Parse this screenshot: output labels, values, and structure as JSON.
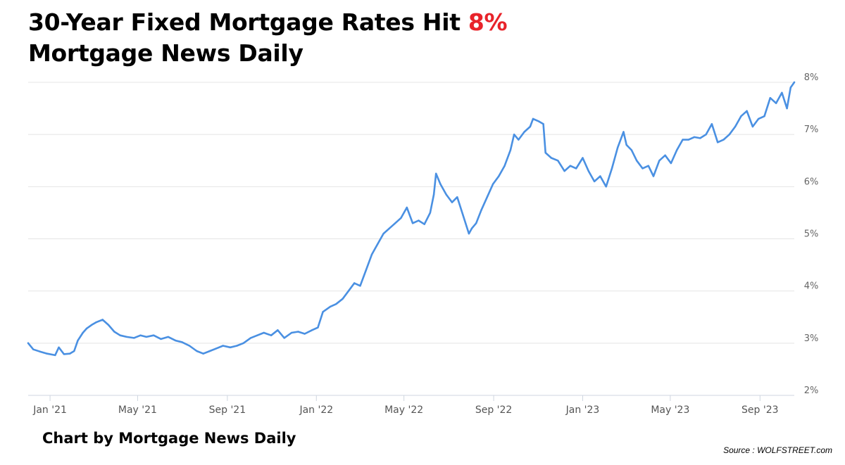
{
  "title": {
    "line1_text": "30-Year Fixed Mortgage Rates Hit ",
    "line1_accent": "8%",
    "line2": "Mortgage News Daily",
    "accent_color": "#e8232a"
  },
  "footer": {
    "credit": "Chart by Mortgage News Daily",
    "source": "Source : WOLFSTREET.com"
  },
  "chart_data": {
    "type": "line",
    "title": "",
    "xlabel": "",
    "ylabel": "",
    "x_start": "2020-12-02",
    "x_end": "2023-10-18",
    "ylim": [
      2,
      8
    ],
    "y_ticks": [
      2,
      3,
      4,
      5,
      6,
      7,
      8
    ],
    "y_tick_labels": [
      "2%",
      "3%",
      "4%",
      "5%",
      "6%",
      "7%",
      "8%"
    ],
    "x_ticks": [
      "2021-01-01",
      "2021-05-01",
      "2021-09-01",
      "2022-01-01",
      "2022-05-01",
      "2022-09-01",
      "2023-01-01",
      "2023-05-01",
      "2023-09-01"
    ],
    "x_tick_labels": [
      "Jan '21",
      "May '21",
      "Sep '21",
      "Jan '22",
      "May '22",
      "Sep '22",
      "Jan '23",
      "May '23",
      "Sep '23"
    ],
    "grid": true,
    "legend": "none",
    "line_color": "#4a90e2",
    "series": [
      {
        "x": [
          "2020-12-02",
          "2020-12-09",
          "2020-12-18",
          "2020-12-28",
          "2021-01-08",
          "2021-01-13",
          "2021-01-20",
          "2021-01-28",
          "2021-02-03",
          "2021-02-08",
          "2021-02-15",
          "2021-02-20",
          "2021-02-27",
          "2021-03-05",
          "2021-03-14",
          "2021-03-22",
          "2021-03-30",
          "2021-04-07",
          "2021-04-16",
          "2021-04-26",
          "2021-05-05",
          "2021-05-13",
          "2021-05-23",
          "2021-06-02",
          "2021-06-12",
          "2021-06-22",
          "2021-07-01",
          "2021-07-11",
          "2021-07-21",
          "2021-07-30",
          "2021-08-08",
          "2021-08-17",
          "2021-08-26",
          "2021-09-05",
          "2021-09-14",
          "2021-09-23",
          "2021-10-03",
          "2021-10-12",
          "2021-10-21",
          "2021-10-31",
          "2021-11-09",
          "2021-11-18",
          "2021-11-28",
          "2021-12-07",
          "2021-12-16",
          "2021-12-26",
          "2022-01-03",
          "2022-01-10",
          "2022-01-20",
          "2022-01-28",
          "2022-02-06",
          "2022-02-14",
          "2022-02-22",
          "2022-03-02",
          "2022-03-10",
          "2022-03-18",
          "2022-03-26",
          "2022-04-03",
          "2022-04-11",
          "2022-04-19",
          "2022-04-27",
          "2022-05-05",
          "2022-05-13",
          "2022-05-21",
          "2022-05-29",
          "2022-06-06",
          "2022-06-11",
          "2022-06-14",
          "2022-06-20",
          "2022-06-28",
          "2022-07-06",
          "2022-07-13",
          "2022-07-21",
          "2022-07-29",
          "2022-08-02",
          "2022-08-08",
          "2022-08-15",
          "2022-08-23",
          "2022-08-31",
          "2022-09-08",
          "2022-09-16",
          "2022-09-24",
          "2022-09-29",
          "2022-10-05",
          "2022-10-13",
          "2022-10-21",
          "2022-10-25",
          "2022-11-02",
          "2022-11-08",
          "2022-11-11",
          "2022-11-19",
          "2022-11-28",
          "2022-12-07",
          "2022-12-15",
          "2022-12-23",
          "2023-01-01",
          "2023-01-09",
          "2023-01-17",
          "2023-01-25",
          "2023-02-02",
          "2023-02-10",
          "2023-02-18",
          "2023-02-26",
          "2023-03-02",
          "2023-03-09",
          "2023-03-16",
          "2023-03-24",
          "2023-04-01",
          "2023-04-08",
          "2023-04-16",
          "2023-04-24",
          "2023-05-02",
          "2023-05-10",
          "2023-05-18",
          "2023-05-26",
          "2023-06-03",
          "2023-06-11",
          "2023-06-19",
          "2023-06-27",
          "2023-07-05",
          "2023-07-13",
          "2023-07-21",
          "2023-07-29",
          "2023-08-06",
          "2023-08-14",
          "2023-08-22",
          "2023-08-30",
          "2023-09-07",
          "2023-09-15",
          "2023-09-23",
          "2023-10-01",
          "2023-10-08",
          "2023-10-13",
          "2023-10-18"
        ],
        "y": [
          3.0,
          2.88,
          2.84,
          2.8,
          2.77,
          2.92,
          2.79,
          2.8,
          2.85,
          3.05,
          3.2,
          3.28,
          3.35,
          3.4,
          3.45,
          3.35,
          3.22,
          3.15,
          3.12,
          3.1,
          3.15,
          3.12,
          3.15,
          3.08,
          3.12,
          3.05,
          3.02,
          2.95,
          2.85,
          2.8,
          2.85,
          2.9,
          2.95,
          2.92,
          2.95,
          3.0,
          3.1,
          3.15,
          3.2,
          3.15,
          3.25,
          3.1,
          3.2,
          3.22,
          3.18,
          3.25,
          3.3,
          3.6,
          3.7,
          3.75,
          3.85,
          4.0,
          4.15,
          4.1,
          4.4,
          4.7,
          4.9,
          5.1,
          5.2,
          5.3,
          5.4,
          5.6,
          5.3,
          5.35,
          5.28,
          5.5,
          5.85,
          6.25,
          6.05,
          5.85,
          5.7,
          5.8,
          5.45,
          5.1,
          5.2,
          5.3,
          5.55,
          5.8,
          6.05,
          6.2,
          6.4,
          6.7,
          7.0,
          6.9,
          7.05,
          7.15,
          7.3,
          7.25,
          7.2,
          6.65,
          6.55,
          6.5,
          6.3,
          6.4,
          6.35,
          6.55,
          6.3,
          6.1,
          6.2,
          6.0,
          6.35,
          6.75,
          7.05,
          6.8,
          6.7,
          6.5,
          6.35,
          6.4,
          6.2,
          6.5,
          6.6,
          6.45,
          6.7,
          6.9,
          6.9,
          6.95,
          6.93,
          7.0,
          7.2,
          6.85,
          6.9,
          7.0,
          7.15,
          7.35,
          7.45,
          7.15,
          7.3,
          7.35,
          7.7,
          7.6,
          7.8,
          7.5,
          7.9,
          8.0
        ]
      }
    ]
  }
}
